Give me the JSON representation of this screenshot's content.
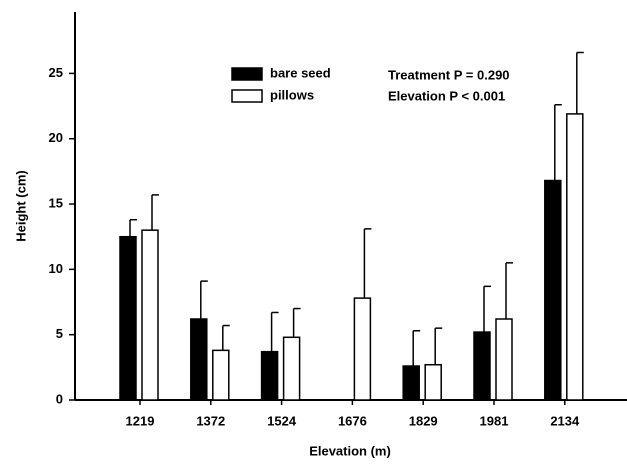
{
  "chart_data": {
    "type": "bar",
    "x_label": "Elevation (m)",
    "y_label": "Height (cm)",
    "categories": [
      "1219",
      "1372",
      "1524",
      "1676",
      "1829",
      "1981",
      "2134"
    ],
    "series": [
      {
        "name": "bare seed",
        "color": "#000000",
        "values": [
          12.5,
          6.2,
          3.7,
          null,
          2.6,
          5.2,
          16.8
        ],
        "errors": [
          1.3,
          2.9,
          3.0,
          null,
          2.7,
          3.5,
          5.8
        ]
      },
      {
        "name": "pillows",
        "color": "#ffffff",
        "values": [
          13.0,
          3.8,
          4.8,
          7.8,
          2.7,
          6.2,
          21.9
        ],
        "errors": [
          2.7,
          1.9,
          2.2,
          5.3,
          2.8,
          4.3,
          4.7
        ]
      }
    ],
    "annotations": [
      "Treatment P = 0.290",
      "Elevation P < 0.001"
    ],
    "ylim": [
      0,
      29.7
    ],
    "yticks": [
      0,
      5,
      10,
      15,
      20,
      25
    ]
  }
}
